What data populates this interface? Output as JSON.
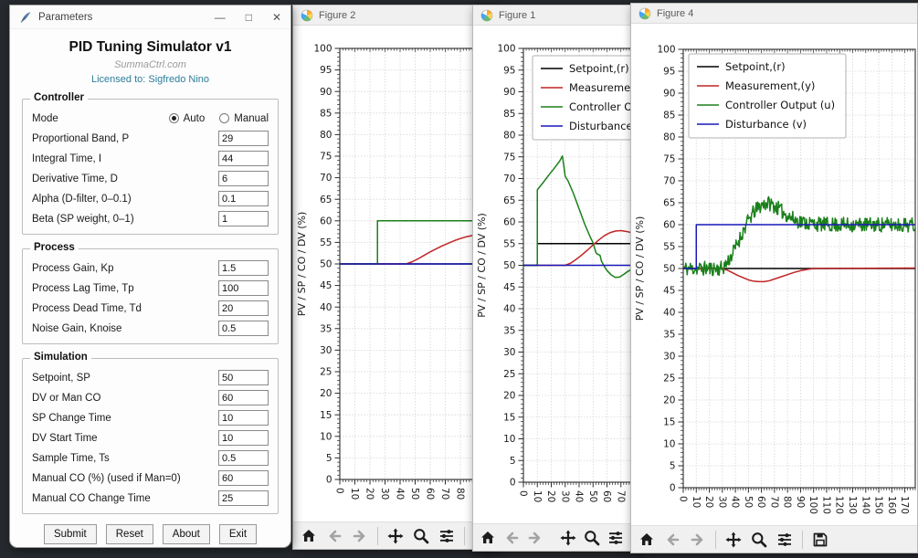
{
  "app": {
    "parameters_window": {
      "title": "Parameters",
      "controls": {
        "minimize": "—",
        "maximize": "□",
        "close": "✕"
      },
      "heading": "PID Tuning Simulator v1",
      "subtitle": "SummaCtrl.com",
      "license": "Licensed to: Sigfredo Nino",
      "groups": [
        {
          "title": "Controller",
          "mode_row": {
            "label": "Mode",
            "options": [
              {
                "label": "Auto",
                "selected": true
              },
              {
                "label": "Manual",
                "selected": false
              }
            ]
          },
          "fields": [
            {
              "label": "Proportional Band, P",
              "value": "29"
            },
            {
              "label": "Integral Time, I",
              "value": "44"
            },
            {
              "label": "Derivative Time, D",
              "value": "6"
            },
            {
              "label": "Alpha (D-filter, 0–0.1)",
              "value": "0.1"
            },
            {
              "label": "Beta (SP weight, 0–1)",
              "value": "1"
            }
          ]
        },
        {
          "title": "Process",
          "fields": [
            {
              "label": "Process Gain, Kp",
              "value": "1.5"
            },
            {
              "label": "Process Lag Time, Tp",
              "value": "100"
            },
            {
              "label": "Process Dead Time, Td",
              "value": "20"
            },
            {
              "label": "Noise Gain, Knoise",
              "value": "0.5"
            }
          ]
        },
        {
          "title": "Simulation",
          "fields": [
            {
              "label": "Setpoint, SP",
              "value": "50"
            },
            {
              "label": "DV or Man CO",
              "value": "60"
            },
            {
              "label": "SP Change Time",
              "value": "10"
            },
            {
              "label": "DV Start Time",
              "value": "10"
            },
            {
              "label": "Sample Time, Ts",
              "value": "0.5"
            },
            {
              "label": "Manual CO (%) (used if Man=0)",
              "value": "60"
            },
            {
              "label": "Manual CO Change Time",
              "value": "25"
            }
          ]
        }
      ],
      "buttons": [
        "Submit",
        "Reset",
        "About",
        "Exit"
      ]
    },
    "figures": [
      {
        "id": "fig2",
        "title": "Figure 2",
        "toolbar": [
          "home",
          "back",
          "forward",
          "pan",
          "zoom",
          "subplots",
          "save"
        ]
      },
      {
        "id": "fig1",
        "title": "Figure 1",
        "toolbar": [
          "home",
          "back",
          "forward",
          "pan",
          "zoom",
          "subplots",
          "save"
        ]
      },
      {
        "id": "fig4",
        "title": "Figure 4",
        "toolbar": [
          "home",
          "back",
          "forward",
          "pan",
          "zoom",
          "subplots",
          "save"
        ]
      }
    ],
    "colors": {
      "setpoint": "#000000",
      "measurement": "#c02525",
      "controller_output": "#1a801a",
      "disturbance": "#1818b8",
      "license_text": "#2d7d9a"
    }
  },
  "chart_data": [
    {
      "id": "fig2",
      "type": "line",
      "title": "",
      "ylabel": "PV / SP / CO / DV (%)",
      "xlim": [
        0,
        100
      ],
      "ylim": [
        0,
        100
      ],
      "xtick_step": 10,
      "ytick_step": 5,
      "grid": true,
      "show_legend": false,
      "series": [
        {
          "name": "Setpoint,(r)",
          "color": "#000000",
          "points": [
            [
              0,
              50
            ],
            [
              100,
              50
            ]
          ]
        },
        {
          "name": "Measurement,(y)",
          "color": "#c02525",
          "points": [
            [
              0,
              50
            ],
            [
              44,
              50
            ],
            [
              48,
              50.5
            ],
            [
              52,
              51.2
            ],
            [
              56,
              52
            ],
            [
              60,
              52.8
            ],
            [
              64,
              53.5
            ],
            [
              68,
              54.2
            ],
            [
              72,
              54.8
            ],
            [
              76,
              55.4
            ],
            [
              80,
              55.9
            ],
            [
              84,
              56.3
            ],
            [
              88,
              56.6
            ],
            [
              92,
              56.9
            ],
            [
              96,
              57.1
            ],
            [
              100,
              57.3
            ]
          ]
        },
        {
          "name": "Controller Output (u)",
          "color": "#1a801a",
          "points": [
            [
              0,
              50
            ],
            [
              25,
              50
            ],
            [
              25,
              60
            ],
            [
              100,
              60
            ]
          ]
        },
        {
          "name": "Disturbance (v)",
          "color": "#1818b8",
          "points": [
            [
              0,
              50
            ],
            [
              100,
              50
            ]
          ]
        }
      ]
    },
    {
      "id": "fig1",
      "type": "line",
      "title": "",
      "ylabel": "PV / SP / CO / DV (%)",
      "xlim": [
        0,
        80
      ],
      "ylim": [
        0,
        100
      ],
      "xtick_step": 10,
      "ytick_step": 5,
      "grid": true,
      "show_legend": true,
      "legend_labels": [
        "Setpoint,(r)",
        "Measurement,(y)",
        "Controller Output (u)",
        "Disturbance (v)"
      ],
      "series": [
        {
          "name": "Setpoint,(r)",
          "color": "#000000",
          "points": [
            [
              0,
              50
            ],
            [
              10,
              50
            ],
            [
              10,
              55
            ],
            [
              80,
              55
            ]
          ]
        },
        {
          "name": "Measurement,(y)",
          "color": "#c02525",
          "points": [
            [
              0,
              50
            ],
            [
              30,
              50
            ],
            [
              34,
              50.5
            ],
            [
              38,
              51.4
            ],
            [
              42,
              52.4
            ],
            [
              46,
              53.5
            ],
            [
              50,
              54.7
            ],
            [
              54,
              55.8
            ],
            [
              58,
              56.8
            ],
            [
              62,
              57.5
            ],
            [
              66,
              57.9
            ],
            [
              70,
              58
            ],
            [
              74,
              57.8
            ],
            [
              78,
              57.5
            ],
            [
              80,
              57.3
            ]
          ]
        },
        {
          "name": "Controller Output (u)",
          "color": "#1a801a",
          "points": [
            [
              0,
              50
            ],
            [
              10,
              50
            ],
            [
              10,
              67.4
            ],
            [
              14,
              69
            ],
            [
              18,
              70.7
            ],
            [
              22,
              72.3
            ],
            [
              26,
              74
            ],
            [
              28,
              75.2
            ],
            [
              29,
              73
            ],
            [
              30,
              70.5
            ],
            [
              32,
              69.5
            ],
            [
              36,
              66.5
            ],
            [
              40,
              63
            ],
            [
              44,
              59.5
            ],
            [
              48,
              56.5
            ],
            [
              50,
              55.2
            ],
            [
              52,
              53
            ],
            [
              53,
              52.6
            ],
            [
              55,
              52.3
            ],
            [
              56,
              51
            ],
            [
              58,
              49.8
            ],
            [
              60,
              48.8
            ],
            [
              63,
              47.8
            ],
            [
              66,
              47.2
            ],
            [
              69,
              47.3
            ],
            [
              72,
              47.9
            ],
            [
              75,
              48.6
            ],
            [
              78,
              49.1
            ],
            [
              80,
              49.3
            ]
          ]
        },
        {
          "name": "Disturbance (v)",
          "color": "#1818b8",
          "points": [
            [
              0,
              50
            ],
            [
              80,
              50
            ]
          ]
        }
      ]
    },
    {
      "id": "fig4",
      "type": "line",
      "title": "",
      "ylabel": "PV / SP / CO / DV (%)",
      "xlim": [
        0,
        178
      ],
      "ylim": [
        0,
        100
      ],
      "xtick_step": 10,
      "ytick_step": 5,
      "grid": true,
      "show_legend": true,
      "legend_labels": [
        "Setpoint,(r)",
        "Measurement,(y)",
        "Controller Output (u)",
        "Disturbance (v)"
      ],
      "series": [
        {
          "name": "Setpoint,(r)",
          "color": "#000000",
          "points": [
            [
              0,
              50
            ],
            [
              178,
              50
            ]
          ]
        },
        {
          "name": "Measurement,(y)",
          "color": "#c02525",
          "points": [
            [
              0,
              50
            ],
            [
              30,
              50
            ],
            [
              34,
              49.6
            ],
            [
              38,
              49
            ],
            [
              42,
              48.4
            ],
            [
              46,
              47.9
            ],
            [
              50,
              47.4
            ],
            [
              54,
              47.1
            ],
            [
              58,
              47
            ],
            [
              62,
              47
            ],
            [
              66,
              47.2
            ],
            [
              70,
              47.6
            ],
            [
              75,
              48.1
            ],
            [
              80,
              48.6
            ],
            [
              85,
              49.1
            ],
            [
              90,
              49.5
            ],
            [
              95,
              49.8
            ],
            [
              100,
              50
            ],
            [
              178,
              50.1
            ]
          ]
        },
        {
          "name": "Controller Output (u)",
          "color": "#1a801a",
          "noise": 1.7,
          "noise_seed": 11,
          "sample_step": 0.5,
          "points": [
            [
              0,
              50
            ],
            [
              30,
              50
            ],
            [
              34,
              51.5
            ],
            [
              38,
              53.5
            ],
            [
              42,
              56
            ],
            [
              46,
              58.5
            ],
            [
              50,
              61
            ],
            [
              54,
              62.8
            ],
            [
              58,
              64
            ],
            [
              62,
              64.8
            ],
            [
              66,
              64.9
            ],
            [
              70,
              64.3
            ],
            [
              74,
              63.4
            ],
            [
              78,
              62.5
            ],
            [
              82,
              61.7
            ],
            [
              86,
              61.1
            ],
            [
              90,
              60.7
            ],
            [
              95,
              60.4
            ],
            [
              100,
              60.2
            ],
            [
              110,
              60
            ],
            [
              178,
              60
            ]
          ]
        },
        {
          "name": "Disturbance (v)",
          "color": "#1818b8",
          "points": [
            [
              0,
              50
            ],
            [
              10,
              50
            ],
            [
              10,
              60
            ],
            [
              178,
              60
            ]
          ]
        }
      ]
    }
  ]
}
